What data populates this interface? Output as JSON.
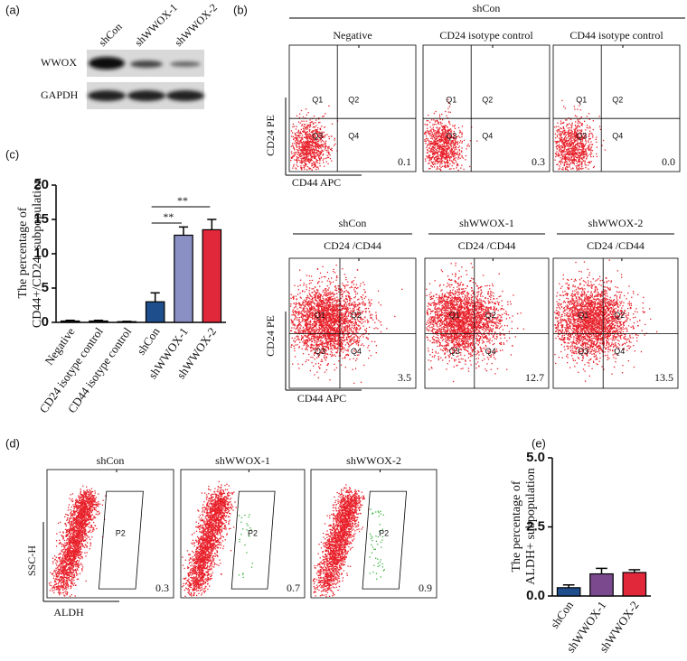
{
  "panel_labels": [
    "(a)",
    "(b)",
    "(c)",
    "(d)",
    "(e)"
  ],
  "western_blot": {
    "lanes": [
      "shCon",
      "shWWOX-1",
      "shWWOX-2"
    ],
    "rows": [
      "WWOX",
      "GAPDH"
    ]
  },
  "flow_b": {
    "group": "shCon",
    "x_label": "CD44 APC",
    "y_label": "CD24 PE",
    "quadrant_labels": [
      "Q1",
      "Q2",
      "Q3",
      "Q4"
    ],
    "controls": [
      {
        "title": "Negative",
        "value": "0.1"
      },
      {
        "title": "CD24 isotype control",
        "value": "0.3"
      },
      {
        "title": "CD44 isotype control",
        "value": "0.0"
      }
    ],
    "samples": [
      {
        "group": "shCon",
        "title": "CD24 /CD44",
        "value": "3.5"
      },
      {
        "group": "shWWOX-1",
        "title": "CD24 /CD44",
        "value": "12.7"
      },
      {
        "group": "shWWOX-2",
        "title": "CD24 /CD44",
        "value": "13.5"
      }
    ]
  },
  "flow_d": {
    "x_label": "ALDH",
    "y_label": "SSC-H",
    "gate": "P2",
    "plots": [
      {
        "title": "shCon",
        "value": "0.3"
      },
      {
        "title": "shWWOX-1",
        "value": "0.7"
      },
      {
        "title": "shWWOX-2",
        "value": "0.9"
      }
    ]
  },
  "chart_data": [
    {
      "type": "bar",
      "y_label": [
        "The percentage of",
        "CD44+/CD24- subpopulation"
      ],
      "categories": [
        "Negative",
        "CD24 isotype control",
        "CD44 isotype control",
        "shCon",
        "shWWOX-1",
        "shWWOX-2"
      ],
      "values": [
        0.2,
        0.2,
        0.1,
        3.0,
        12.7,
        13.5
      ],
      "errors": [
        0.1,
        0.1,
        0.05,
        1.3,
        1.2,
        1.5
      ],
      "colors": [
        "#222222",
        "#222222",
        "#222222",
        "#1f4e8c",
        "#8a8fc4",
        "#e0283a"
      ],
      "ylim": [
        0,
        20
      ],
      "yticks": [
        0,
        5,
        10,
        15,
        20
      ],
      "annotations": [
        "**",
        "**"
      ]
    },
    {
      "type": "bar",
      "y_label": [
        "The percentage of",
        "ALDH+ subpopulation"
      ],
      "categories": [
        "shCon",
        "shWWOX-1",
        "shWWOX-2"
      ],
      "values": [
        0.3,
        0.8,
        0.85
      ],
      "errors": [
        0.1,
        0.2,
        0.1
      ],
      "colors": [
        "#1f4e8c",
        "#7b4a8e",
        "#e0283a"
      ],
      "ylim": [
        0,
        5
      ],
      "yticks": [
        {
          "value": 0,
          "label": "0.0"
        },
        {
          "value": 2.5,
          "label": "2.5"
        },
        {
          "value": 5,
          "label": "5.0"
        }
      ]
    }
  ]
}
